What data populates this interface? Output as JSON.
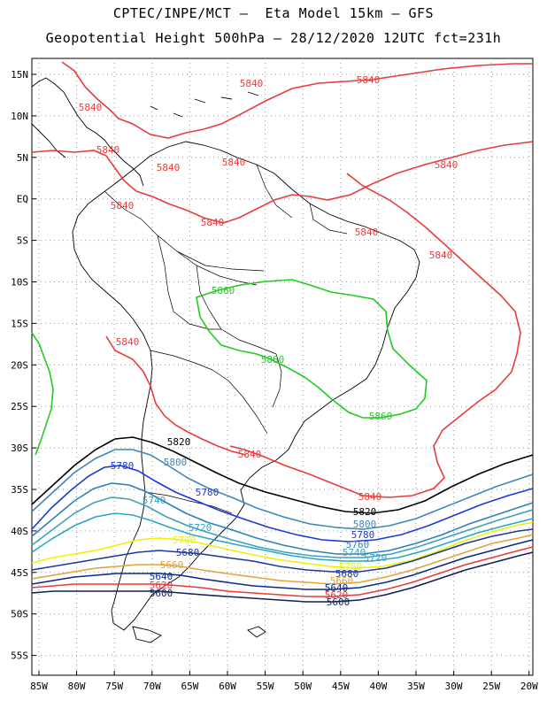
{
  "header": {
    "line1": "CPTEC/INPE/MCT –  Eta Model 15km – GFS",
    "line2": "Geopotential Height 500hPa – 28/12/2020 12UTC fct=231h"
  },
  "axes": {
    "lat_labels": [
      "15N",
      "10N",
      "5N",
      "EQ",
      "5S",
      "10S",
      "15S",
      "20S",
      "25S",
      "30S",
      "35S",
      "40S",
      "45S",
      "50S",
      "55S"
    ],
    "lon_labels": [
      "85W",
      "80W",
      "75W",
      "70W",
      "65W",
      "60W",
      "55W",
      "50W",
      "45W",
      "40W",
      "35W",
      "30W",
      "25W",
      "20W"
    ]
  },
  "colors": {
    "c5840": "#e83c3c",
    "c5860": "#1ecc1e",
    "c5820": "#000000",
    "c5800": "#3f87b4",
    "c5780": "#1a3ad6",
    "c5760": "#2f7fb8",
    "c5740": "#3f9fbf",
    "c5720": "#2aa5c8",
    "c5700": "#f0f000",
    "c5680": "#1b3a9b",
    "c5660": "#e0a33a",
    "c5640": "#0a2a8a",
    "c5620": "#e83c3c",
    "c5600": "#10205a",
    "land": "#000000",
    "grid": "#999999"
  },
  "contour_labels": {
    "c5840": [
      "5840",
      "5840",
      "5840",
      "5840",
      "5840",
      "5840",
      "5840",
      "5840",
      "5840",
      "5840",
      "5840",
      "5840",
      "5840",
      "5840"
    ],
    "c5860": [
      "5860",
      "5860",
      "5860"
    ],
    "c5820": [
      "5820",
      "5820"
    ],
    "c5800": [
      "5800",
      "5800"
    ],
    "c5780": [
      "5780",
      "5780",
      "5780"
    ],
    "c5760": [
      "5760"
    ],
    "c5740": [
      "5740",
      "5740"
    ],
    "c5720": [
      "5720",
      "5720"
    ],
    "c5700": [
      "5700",
      "5700"
    ],
    "c5680": [
      "5680",
      "5680"
    ],
    "c5660": [
      "5660",
      "5660"
    ],
    "c5640": [
      "5640",
      "5640"
    ],
    "c5620": [
      "5620",
      "5620"
    ],
    "c5600": [
      "5600",
      "5600"
    ]
  }
}
